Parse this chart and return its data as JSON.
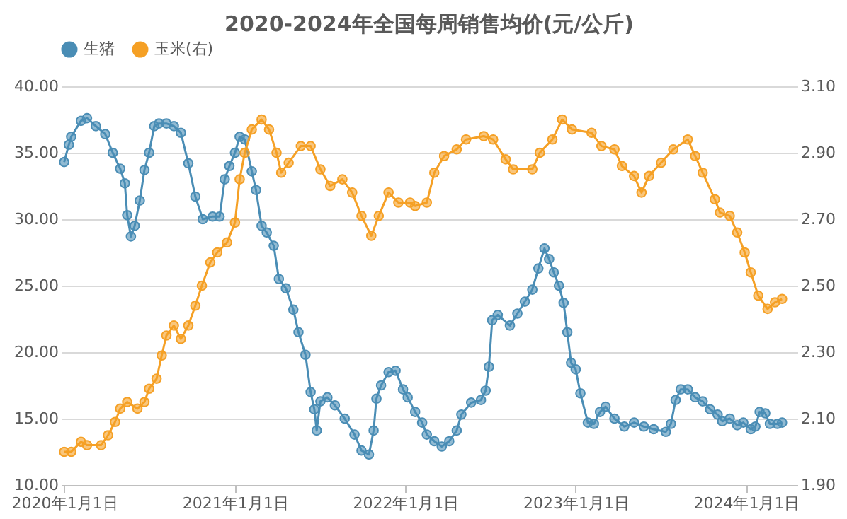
{
  "chart_data": {
    "type": "line",
    "title": "2020-2024年全国每周销售均价(元/公斤)",
    "legend": "top",
    "grid": "y",
    "marker": "circle",
    "line_style": "solid",
    "xlim": [
      "2019-12-25",
      "2024-04-20"
    ],
    "xticks": [
      {
        "value": "2020-01-01",
        "label": "2020年1月1日"
      },
      {
        "value": "2021-01-01",
        "label": "2021年1月1日"
      },
      {
        "value": "2022-01-01",
        "label": "2022年1月1日"
      },
      {
        "value": "2023-01-01",
        "label": "2023年1月1日"
      },
      {
        "value": "2024-01-01",
        "label": "2024年1月1日"
      }
    ],
    "ylim": [
      10,
      40
    ],
    "yticks": [
      {
        "value": 10,
        "label": "10.00"
      },
      {
        "value": 15,
        "label": "15.00"
      },
      {
        "value": 20,
        "label": "20.00"
      },
      {
        "value": 25,
        "label": "25.00"
      },
      {
        "value": 30,
        "label": "30.00"
      },
      {
        "value": 35,
        "label": "35.00"
      },
      {
        "value": 40,
        "label": "40.00"
      }
    ],
    "y2lim": [
      1.9,
      3.1
    ],
    "y2ticks": [
      {
        "value": 1.9,
        "label": "1.90"
      },
      {
        "value": 2.1,
        "label": "2.10"
      },
      {
        "value": 2.3,
        "label": "2.30"
      },
      {
        "value": 2.5,
        "label": "2.50"
      },
      {
        "value": 2.7,
        "label": "2.70"
      },
      {
        "value": 2.9,
        "label": "2.90"
      },
      {
        "value": 3.1,
        "label": "3.10"
      }
    ],
    "series": [
      {
        "name": "生猪",
        "color": "#4a8db5",
        "x": [
          "2020-01-01",
          "2020-01-11",
          "2020-01-16",
          "2020-02-06",
          "2020-02-19",
          "2020-03-09",
          "2020-03-29",
          "2020-04-14",
          "2020-04-30",
          "2020-05-10",
          "2020-05-15",
          "2020-05-23",
          "2020-05-31",
          "2020-06-11",
          "2020-06-21",
          "2020-07-01",
          "2020-07-12",
          "2020-07-22",
          "2020-08-07",
          "2020-08-23",
          "2020-09-07",
          "2020-09-23",
          "2020-10-08",
          "2020-10-24",
          "2020-11-14",
          "2020-11-29",
          "2020-12-10",
          "2020-12-20",
          "2021-01-01",
          "2021-01-11",
          "2021-01-22",
          "2021-02-06",
          "2021-02-15",
          "2021-02-27",
          "2021-03-10",
          "2021-03-25",
          "2021-04-05",
          "2021-04-20",
          "2021-05-06",
          "2021-05-17",
          "2021-06-01",
          "2021-06-12",
          "2021-06-20",
          "2021-06-25",
          "2021-07-03",
          "2021-07-18",
          "2021-08-03",
          "2021-08-24",
          "2021-09-14",
          "2021-09-29",
          "2021-10-15",
          "2021-10-25",
          "2021-10-31",
          "2021-11-10",
          "2021-11-26",
          "2021-12-11",
          "2021-12-27",
          "2022-01-06",
          "2022-01-22",
          "2022-02-06",
          "2022-02-16",
          "2022-03-04",
          "2022-03-20",
          "2022-04-05",
          "2022-04-21",
          "2022-05-01",
          "2022-05-22",
          "2022-06-12",
          "2022-06-22",
          "2022-06-29",
          "2022-07-06",
          "2022-07-18",
          "2022-08-13",
          "2022-08-29",
          "2022-09-14",
          "2022-09-30",
          "2022-10-13",
          "2022-10-26",
          "2022-11-05",
          "2022-11-15",
          "2022-11-26",
          "2022-12-06",
          "2022-12-14",
          "2022-12-22",
          "2023-01-01",
          "2023-01-11",
          "2023-01-27",
          "2023-02-09",
          "2023-02-22",
          "2023-03-06",
          "2023-03-25",
          "2023-04-15",
          "2023-05-06",
          "2023-05-27",
          "2023-06-17",
          "2023-07-13",
          "2023-07-24",
          "2023-08-03",
          "2023-08-14",
          "2023-08-29",
          "2023-09-14",
          "2023-09-30",
          "2023-10-16",
          "2023-11-01",
          "2023-11-11",
          "2023-11-27",
          "2023-12-13",
          "2023-12-26",
          "2024-01-11",
          "2024-01-21",
          "2024-01-30",
          "2024-02-11",
          "2024-02-21",
          "2024-03-08",
          "2024-03-18"
        ],
        "values": [
          34.3,
          35.6,
          36.2,
          37.4,
          37.6,
          37.0,
          36.4,
          35.0,
          33.8,
          32.7,
          30.3,
          28.7,
          29.5,
          31.4,
          33.7,
          35.0,
          37.0,
          37.2,
          37.2,
          37.0,
          36.5,
          34.2,
          31.7,
          30.0,
          30.2,
          30.2,
          33.0,
          34.0,
          35.0,
          36.2,
          36.0,
          33.6,
          32.2,
          29.5,
          29.0,
          28.0,
          25.5,
          24.8,
          23.2,
          21.5,
          19.8,
          17.0,
          15.7,
          14.1,
          16.3,
          16.6,
          16.0,
          15.0,
          13.8,
          12.6,
          12.3,
          14.1,
          16.5,
          17.5,
          18.5,
          18.6,
          17.2,
          16.6,
          15.5,
          14.7,
          13.8,
          13.3,
          12.9,
          13.3,
          14.1,
          15.3,
          16.2,
          16.4,
          17.1,
          18.9,
          22.4,
          22.8,
          22.0,
          22.9,
          23.8,
          24.7,
          26.3,
          27.8,
          27.0,
          26.0,
          25.0,
          23.7,
          21.5,
          19.2,
          18.7,
          16.9,
          14.7,
          14.6,
          15.5,
          15.9,
          15.0,
          14.4,
          14.7,
          14.4,
          14.2,
          14.0,
          14.6,
          16.4,
          17.2,
          17.2,
          16.6,
          16.3,
          15.7,
          15.3,
          14.8,
          15.0,
          14.5,
          14.7,
          14.2,
          14.4,
          15.5,
          15.4,
          14.6,
          14.6,
          14.7
        ]
      },
      {
        "name": "玉米(右)",
        "color": "#f5a025",
        "axis": "y2",
        "x": [
          "2020-01-01",
          "2020-01-16",
          "2020-02-06",
          "2020-02-19",
          "2020-03-20",
          "2020-04-04",
          "2020-04-19",
          "2020-04-30",
          "2020-05-15",
          "2020-06-06",
          "2020-06-21",
          "2020-07-01",
          "2020-07-17",
          "2020-07-28",
          "2020-08-07",
          "2020-08-23",
          "2020-09-07",
          "2020-09-23",
          "2020-10-08",
          "2020-10-22",
          "2020-11-09",
          "2020-11-24",
          "2020-12-15",
          "2021-01-01",
          "2021-01-11",
          "2021-01-22",
          "2021-02-06",
          "2021-02-27",
          "2021-03-15",
          "2021-03-31",
          "2021-04-10",
          "2021-04-26",
          "2021-05-22",
          "2021-06-12",
          "2021-07-03",
          "2021-07-24",
          "2021-08-19",
          "2021-09-09",
          "2021-09-29",
          "2021-10-20",
          "2021-11-05",
          "2021-11-26",
          "2021-12-17",
          "2022-01-11",
          "2022-01-22",
          "2022-02-16",
          "2022-03-04",
          "2022-03-25",
          "2022-04-21",
          "2022-05-11",
          "2022-06-18",
          "2022-07-08",
          "2022-08-04",
          "2022-08-20",
          "2022-09-30",
          "2022-10-16",
          "2022-11-12",
          "2022-12-03",
          "2022-12-24",
          "2023-02-04",
          "2023-02-25",
          "2023-03-25",
          "2023-04-10",
          "2023-05-06",
          "2023-05-22",
          "2023-06-07",
          "2023-07-03",
          "2023-07-29",
          "2023-08-29",
          "2023-09-14",
          "2023-09-30",
          "2023-10-26",
          "2023-11-06",
          "2023-11-27",
          "2023-12-13",
          "2023-12-29",
          "2024-01-11",
          "2024-01-27",
          "2024-02-16",
          "2024-03-03",
          "2024-03-18"
        ],
        "values": [
          2.0,
          2.0,
          2.03,
          2.02,
          2.02,
          2.05,
          2.09,
          2.13,
          2.15,
          2.13,
          2.15,
          2.19,
          2.22,
          2.29,
          2.35,
          2.38,
          2.34,
          2.38,
          2.44,
          2.5,
          2.57,
          2.6,
          2.63,
          2.69,
          2.82,
          2.9,
          2.97,
          3.0,
          2.97,
          2.9,
          2.84,
          2.87,
          2.92,
          2.92,
          2.85,
          2.8,
          2.82,
          2.78,
          2.71,
          2.65,
          2.71,
          2.78,
          2.75,
          2.75,
          2.74,
          2.75,
          2.84,
          2.89,
          2.91,
          2.94,
          2.95,
          2.94,
          2.88,
          2.85,
          2.85,
          2.9,
          2.94,
          3.0,
          2.97,
          2.96,
          2.92,
          2.91,
          2.86,
          2.83,
          2.78,
          2.83,
          2.87,
          2.91,
          2.94,
          2.89,
          2.84,
          2.76,
          2.72,
          2.71,
          2.66,
          2.6,
          2.54,
          2.47,
          2.43,
          2.45,
          2.46
        ]
      }
    ]
  }
}
